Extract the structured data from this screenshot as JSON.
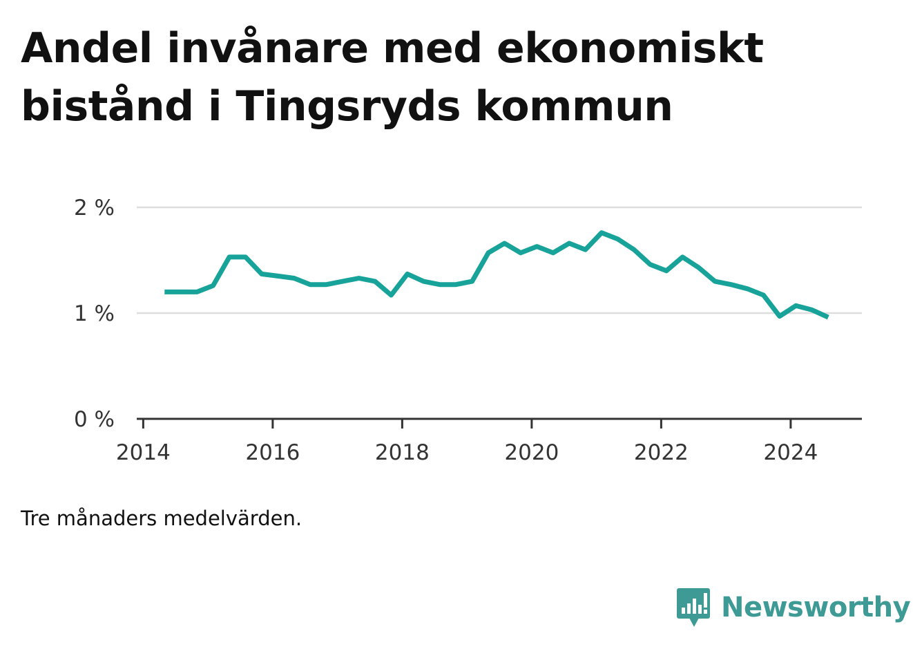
{
  "chart_data": {
    "type": "line",
    "title_lines": [
      "Andel invånare med ekonomiskt",
      "bistånd i Tingsryds kommun"
    ],
    "subtitle": "",
    "xlabel": "",
    "ylabel": "",
    "y_ticks": [
      {
        "value": 0,
        "label": "0 %"
      },
      {
        "value": 1,
        "label": "1 %"
      },
      {
        "value": 2,
        "label": "2 %"
      }
    ],
    "x_ticks": [
      {
        "value": 2014,
        "label": "2014"
      },
      {
        "value": 2016,
        "label": "2016"
      },
      {
        "value": 2018,
        "label": "2018"
      },
      {
        "value": 2020,
        "label": "2020"
      },
      {
        "value": 2022,
        "label": "2022"
      },
      {
        "value": 2024,
        "label": "2024"
      }
    ],
    "xlim": [
      2013.9,
      2025.1
    ],
    "ylim": [
      0,
      2
    ],
    "grid": true,
    "line_color": "#17a39a",
    "series": [
      {
        "x": [
          2014.33,
          2014.58,
          2014.83,
          2015.08,
          2015.33,
          2015.58,
          2015.83,
          2016.08,
          2016.33,
          2016.58,
          2016.83,
          2017.08,
          2017.33,
          2017.58,
          2017.83,
          2018.08,
          2018.33,
          2018.58,
          2018.83,
          2019.08,
          2019.33,
          2019.58,
          2019.83,
          2020.08,
          2020.33,
          2020.58,
          2020.83,
          2021.08,
          2021.33,
          2021.58,
          2021.83,
          2022.08,
          2022.33,
          2022.58,
          2022.83,
          2023.08,
          2023.33,
          2023.58,
          2023.83,
          2024.08,
          2024.33,
          2024.58
        ],
        "values": [
          1.2,
          1.2,
          1.2,
          1.26,
          1.53,
          1.53,
          1.37,
          1.35,
          1.33,
          1.27,
          1.27,
          1.3,
          1.33,
          1.3,
          1.17,
          1.37,
          1.3,
          1.27,
          1.27,
          1.3,
          1.57,
          1.66,
          1.57,
          1.63,
          1.57,
          1.66,
          1.6,
          1.76,
          1.7,
          1.6,
          1.46,
          1.4,
          1.53,
          1.43,
          1.3,
          1.27,
          1.23,
          1.17,
          0.97,
          1.07,
          1.03,
          0.96
        ]
      }
    ],
    "note": "Tre månaders medelvärden."
  },
  "brand": {
    "name": "Newsworthy",
    "color": "#3d9a95",
    "icon": "bar-chart-speech-bubble-icon"
  }
}
